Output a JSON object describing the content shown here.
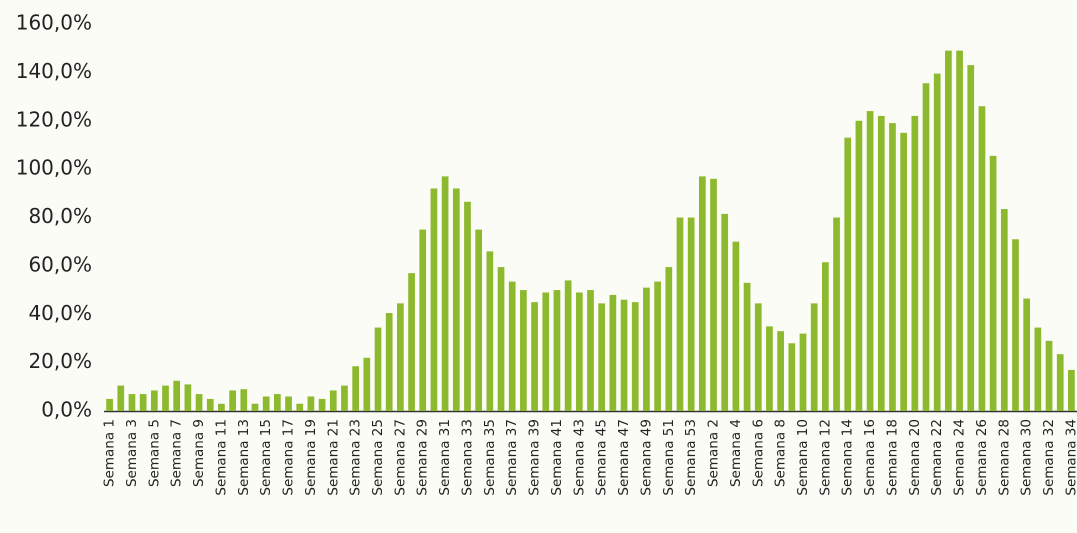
{
  "chart_data": {
    "type": "bar",
    "categories": [
      "Semana 1",
      null,
      "Semana 3",
      null,
      "Semana 5",
      null,
      "Semana 7",
      null,
      "Semana 9",
      null,
      "Semana 11",
      null,
      "Semana 13",
      null,
      "Semana 15",
      null,
      "Semana 17",
      null,
      "Semana 19",
      null,
      "Semana 21",
      null,
      "Semana 23",
      null,
      "Semana 25",
      null,
      "Semana 27",
      null,
      "Semana 29",
      null,
      "Semana 31",
      null,
      "Semana 33",
      null,
      "Semana 35",
      null,
      "Semana 37",
      null,
      "Semana 39",
      null,
      "Semana 41",
      null,
      "Semana 43",
      null,
      "Semana 45",
      null,
      "Semana 47",
      null,
      "Semana 49",
      null,
      "Semana 51",
      null,
      "Semana 53",
      null,
      "Semana 2",
      null,
      "Semana 4",
      null,
      "Semana 6",
      null,
      "Semana 8",
      null,
      "Semana 10",
      null,
      "Semana 12",
      null,
      "Semana 14",
      null,
      "Semana 16",
      null,
      "Semana 18",
      null,
      "Semana 20",
      null,
      "Semana 22",
      null,
      "Semana 24",
      null,
      "Semana 26",
      null,
      "Semana 28",
      null,
      "Semana 30",
      null,
      "Semana 32",
      null,
      "Semana 34"
    ],
    "values": [
      5,
      10.5,
      7,
      7,
      8.5,
      10.5,
      12.5,
      11,
      7,
      5,
      3,
      8.5,
      9,
      3,
      6,
      7,
      6,
      3,
      6,
      5,
      8.5,
      10.5,
      18.5,
      22,
      34.5,
      40.5,
      44.5,
      57,
      75,
      92,
      97,
      92,
      86.5,
      75,
      66,
      59.5,
      53.5,
      50,
      45,
      49,
      50,
      54,
      49,
      50,
      44.5,
      48,
      46,
      45,
      51,
      53.5,
      59.5,
      80,
      80,
      97,
      96,
      81.5,
      70,
      53,
      44.5,
      35,
      33,
      28,
      32,
      44.5,
      61.5,
      80,
      113,
      120,
      124,
      122,
      119,
      115,
      122,
      135.5,
      139.5,
      149,
      149,
      143,
      126,
      105.5,
      83.5,
      71,
      46.5,
      34.5,
      29,
      23.5,
      17
    ],
    "color": "#8db92e",
    "ylim": [
      0,
      160
    ],
    "yticks": [
      {
        "value": 0,
        "label": "0,0%"
      },
      {
        "value": 20,
        "label": "20,0%"
      },
      {
        "value": 40,
        "label": "40,0%"
      },
      {
        "value": 60,
        "label": "60,0%"
      },
      {
        "value": 80,
        "label": "80,0%"
      },
      {
        "value": 100,
        "label": "100,0%"
      },
      {
        "value": 120,
        "label": "120,0%"
      },
      {
        "value": 140,
        "label": "140,0%"
      },
      {
        "value": 160,
        "label": "160,0%"
      }
    ],
    "grid": false
  }
}
